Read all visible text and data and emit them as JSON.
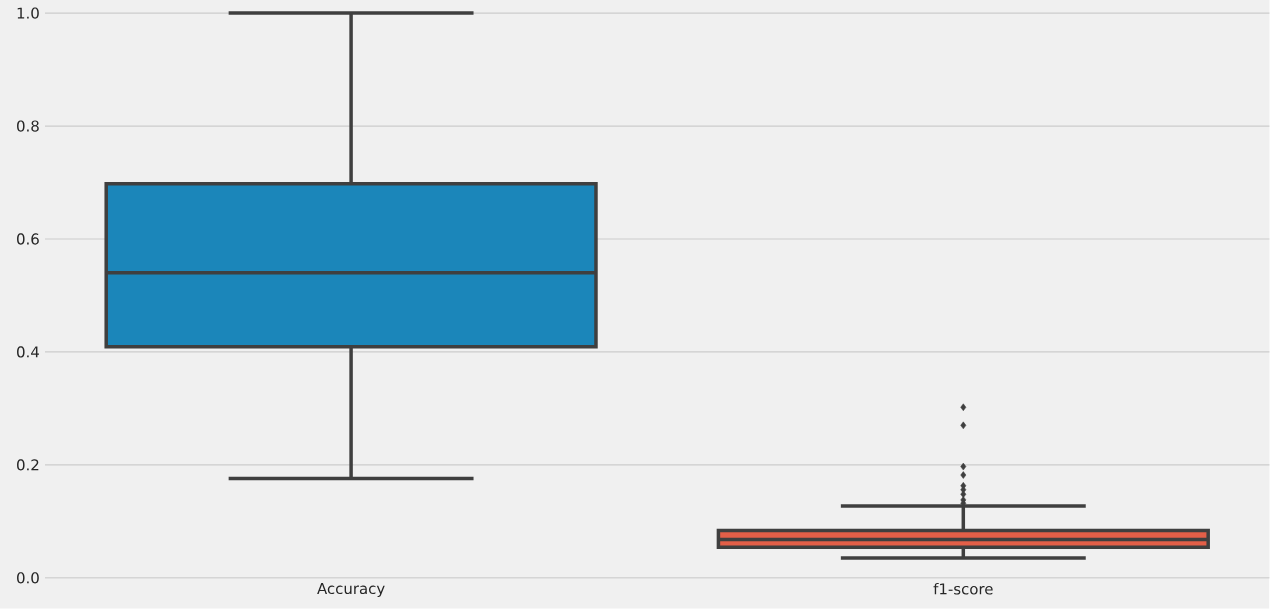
{
  "chart_data": {
    "type": "box",
    "categories": [
      "Accuracy",
      "f1-score"
    ],
    "colors": [
      "#1b86ba",
      "#e35f48"
    ],
    "boxes": [
      {
        "low": 0.176,
        "q1": 0.409,
        "median": 0.54,
        "q3": 0.698,
        "high": 1.0
      },
      {
        "low": 0.035,
        "q1": 0.054,
        "median": 0.068,
        "q3": 0.084,
        "high": 0.127,
        "outliers": [
          0.302,
          0.27,
          0.197,
          0.182,
          0.163,
          0.156,
          0.148,
          0.138,
          0.132
        ]
      }
    ],
    "ylim": [
      0,
      1.023
    ],
    "yticks": [
      {
        "value": 0,
        "label": "0.0"
      },
      {
        "value": 0.2,
        "label": "0.2"
      },
      {
        "value": 0.4,
        "label": "0.4"
      },
      {
        "value": 0.6,
        "label": "0.6"
      },
      {
        "value": 0.8,
        "label": "0.8"
      },
      {
        "value": 1.0,
        "label": "1.0"
      }
    ],
    "grid": "y",
    "marker": "diamond"
  }
}
